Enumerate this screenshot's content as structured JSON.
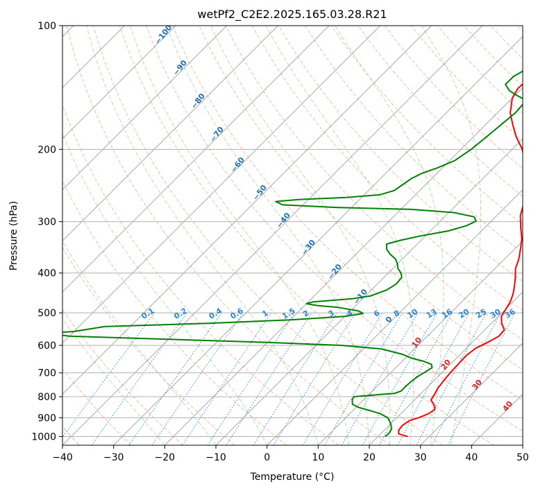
{
  "chart_data": {
    "type": "line",
    "subtype": "skew-T log-p diagram",
    "title": "wetPf2_C2E2.2025.165.03.28.R21",
    "xlabel": "Temperature (°C)",
    "ylabel": "Pressure (hPa)",
    "xlim": [
      -40,
      50
    ],
    "ylim": [
      1050,
      100
    ],
    "y_scale": "log",
    "x_ticks": [
      "−40",
      "−30",
      "−20",
      "−10",
      "0",
      "10",
      "20",
      "30",
      "40",
      "50"
    ],
    "y_ticks": [
      "100",
      "200",
      "300",
      "400",
      "500",
      "600",
      "700",
      "800",
      "900",
      "1000"
    ],
    "grid": true,
    "dry_adiabat_color": "#f4a582",
    "moist_adiabat_color": "#7fbf7f",
    "mixing_ratio_color": "#1f77b4",
    "isotherm_color": "#9e9e9e",
    "series": [
      {
        "color": "#ff0000",
        "points": [
          [
            25.8,
            1000
          ],
          [
            23.5,
            985
          ],
          [
            22.8,
            965
          ],
          [
            22.6,
            940
          ],
          [
            23.0,
            915
          ],
          [
            24.3,
            900
          ],
          [
            25.4,
            880
          ],
          [
            25.8,
            860
          ],
          [
            24.8,
            838
          ],
          [
            23.2,
            815
          ],
          [
            22.8,
            790
          ],
          [
            22.2,
            760
          ],
          [
            21.8,
            720
          ],
          [
            21.6,
            690
          ],
          [
            21.5,
            660
          ],
          [
            21.4,
            635
          ],
          [
            21.8,
            610
          ],
          [
            23.0,
            590
          ],
          [
            24.0,
            570
          ],
          [
            23.8,
            550
          ],
          [
            22.0,
            530
          ],
          [
            20.6,
            510
          ],
          [
            20.2,
            495
          ],
          [
            19.5,
            470
          ],
          [
            18.5,
            450
          ],
          [
            17.2,
            430
          ],
          [
            15.7,
            410
          ],
          [
            14.0,
            390
          ],
          [
            12.8,
            370
          ],
          [
            11.2,
            350
          ],
          [
            9.4,
            330
          ],
          [
            7.0,
            310
          ],
          [
            4.6,
            290
          ],
          [
            2.8,
            270
          ],
          [
            0.5,
            250
          ],
          [
            -2.0,
            232
          ],
          [
            -5.0,
            215
          ],
          [
            -8.0,
            200
          ],
          [
            -11.5,
            187
          ],
          [
            -14.5,
            175
          ],
          [
            -17.5,
            163
          ],
          [
            -20.0,
            150
          ],
          [
            -20.8,
            142
          ],
          [
            -20.5,
            134
          ],
          [
            -20.3,
            125
          ],
          [
            -21.3,
            118
          ],
          [
            -22.5,
            111
          ],
          [
            -24.0,
            106
          ],
          [
            -24.8,
            100
          ]
        ]
      },
      {
        "color": "#008000",
        "points": [
          [
            21.4,
            1000
          ],
          [
            21.5,
            980
          ],
          [
            21.2,
            960
          ],
          [
            20.4,
            940
          ],
          [
            19.4,
            920
          ],
          [
            18.2,
            900
          ],
          [
            16.0,
            880
          ],
          [
            13.4,
            865
          ],
          [
            10.6,
            850
          ],
          [
            8.7,
            835
          ],
          [
            7.7,
            812
          ],
          [
            7.5,
            800
          ],
          [
            10.0,
            795
          ],
          [
            12.3,
            790
          ],
          [
            14.8,
            785
          ],
          [
            15.6,
            775
          ],
          [
            15.6,
            755
          ],
          [
            15.7,
            735
          ],
          [
            16.0,
            715
          ],
          [
            16.5,
            700
          ],
          [
            17.1,
            680
          ],
          [
            16.3,
            667
          ],
          [
            14.0,
            655
          ],
          [
            11.3,
            645
          ],
          [
            8.5,
            630
          ],
          [
            3.5,
            612
          ],
          [
            -5.0,
            600
          ],
          [
            -20.0,
            590
          ],
          [
            -40.0,
            580
          ],
          [
            -60.0,
            570
          ],
          [
            -65.0,
            560
          ],
          [
            -60.0,
            555
          ],
          [
            -55.0,
            540
          ],
          [
            -35.0,
            530
          ],
          [
            -20.0,
            520
          ],
          [
            -10.0,
            510
          ],
          [
            -7.0,
            502
          ],
          [
            -8.3,
            495
          ],
          [
            -13.0,
            485
          ],
          [
            -17.5,
            480
          ],
          [
            -20.0,
            475
          ],
          [
            -19.0,
            470
          ],
          [
            -15.5,
            466
          ],
          [
            -12.0,
            462
          ],
          [
            -9.0,
            455
          ],
          [
            -7.0,
            440
          ],
          [
            -6.3,
            425
          ],
          [
            -6.5,
            410
          ],
          [
            -7.5,
            400
          ],
          [
            -9.0,
            390
          ],
          [
            -10.0,
            380
          ],
          [
            -11.3,
            370
          ],
          [
            -13.3,
            360
          ],
          [
            -15.0,
            350
          ],
          [
            -16.0,
            340
          ],
          [
            -14.0,
            333
          ],
          [
            -11.0,
            325
          ],
          [
            -6.5,
            316
          ],
          [
            -4.0,
            307
          ],
          [
            -3.0,
            299
          ],
          [
            -4.2,
            292
          ],
          [
            -9.0,
            285
          ],
          [
            -18.0,
            280
          ],
          [
            -33.0,
            277
          ],
          [
            -44.0,
            273
          ],
          [
            -46.0,
            268
          ],
          [
            -42.0,
            265
          ],
          [
            -33.0,
            262
          ],
          [
            -27.0,
            258
          ],
          [
            -25.0,
            252
          ],
          [
            -24.5,
            244
          ],
          [
            -24.0,
            236
          ],
          [
            -23.0,
            229
          ],
          [
            -21.0,
            222
          ],
          [
            -19.0,
            213
          ],
          [
            -18.0,
            200
          ],
          [
            -17.5,
            188
          ],
          [
            -17.0,
            175
          ],
          [
            -16.5,
            163
          ],
          [
            -16.8,
            152
          ],
          [
            -19.5,
            148
          ],
          [
            -22.0,
            144
          ],
          [
            -24.0,
            139
          ],
          [
            -24.0,
            133
          ],
          [
            -23.0,
            128
          ],
          [
            -22.5,
            122
          ],
          [
            -22.5,
            116
          ],
          [
            -23.5,
            110
          ],
          [
            -24.0,
            105
          ],
          [
            -23.0,
            100
          ]
        ]
      }
    ],
    "dry_adiabat_labels": [
      "−100",
      "−90",
      "−80",
      "−70",
      "−60",
      "−50",
      "−40",
      "−30",
      "−20",
      "−10",
      "0",
      "10",
      "20",
      "30",
      "40"
    ],
    "mixing_ratio_labels": [
      "0.1",
      "0.2",
      "0.4",
      "0.6",
      "1",
      "1.5",
      "2",
      "3",
      "4",
      "6",
      "8",
      "10",
      "13",
      "16",
      "20",
      "25",
      "30",
      "36"
    ]
  }
}
